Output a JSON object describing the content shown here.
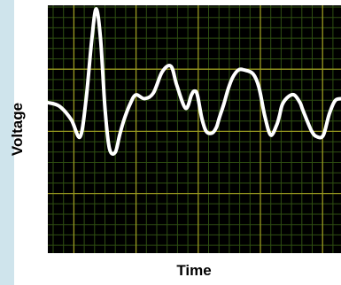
{
  "chart_data": {
    "type": "line",
    "title": "",
    "xlabel": "Time",
    "ylabel": "Voltage",
    "grid": true,
    "colors": {
      "background": "#000000",
      "minor_grid": "#2f4f12",
      "major_grid": "#9a9a20",
      "trace": "#ffffff"
    },
    "series": [
      {
        "x": [
          0.0,
          0.04,
          0.08,
          0.11,
          0.13,
          0.15,
          0.165,
          0.18,
          0.195,
          0.21,
          0.23,
          0.245,
          0.26,
          0.28,
          0.3,
          0.33,
          0.36,
          0.39,
          0.42,
          0.44,
          0.47,
          0.49,
          0.5,
          0.51,
          0.525,
          0.54,
          0.56,
          0.575,
          0.585,
          0.6,
          0.615,
          0.63,
          0.65,
          0.67,
          0.7,
          0.72,
          0.74,
          0.76,
          0.78,
          0.79,
          0.8,
          0.82,
          0.84,
          0.86,
          0.87,
          0.9,
          0.92,
          0.94,
          0.96,
          0.98,
          1.0
        ],
        "y": [
          0.51,
          0.49,
          0.42,
          0.33,
          0.52,
          0.84,
          1.0,
          0.84,
          0.48,
          0.27,
          0.25,
          0.34,
          0.42,
          0.5,
          0.55,
          0.53,
          0.56,
          0.67,
          0.7,
          0.6,
          0.48,
          0.55,
          0.57,
          0.55,
          0.43,
          0.36,
          0.35,
          0.38,
          0.43,
          0.5,
          0.58,
          0.64,
          0.68,
          0.68,
          0.66,
          0.59,
          0.44,
          0.34,
          0.39,
          0.44,
          0.5,
          0.54,
          0.55,
          0.51,
          0.47,
          0.36,
          0.33,
          0.34,
          0.45,
          0.52,
          0.53
        ]
      }
    ],
    "xlim": [
      0,
      1
    ],
    "ylim": [
      0,
      1
    ]
  }
}
